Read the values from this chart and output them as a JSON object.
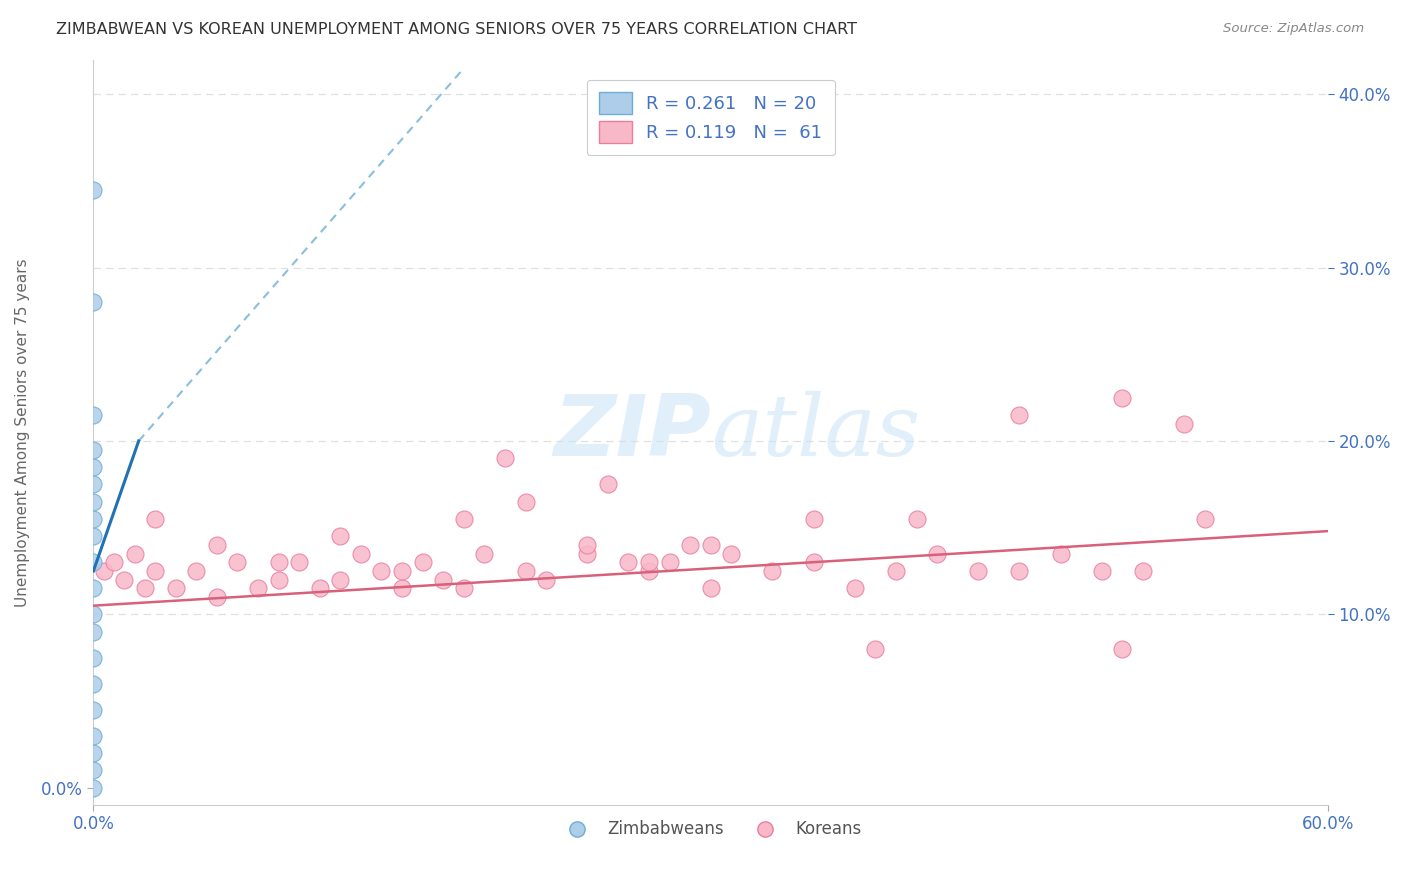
{
  "title": "ZIMBABWEAN VS KOREAN UNEMPLOYMENT AMONG SENIORS OVER 75 YEARS CORRELATION CHART",
  "source": "Source: ZipAtlas.com",
  "ylabel": "Unemployment Among Seniors over 75 years",
  "xlim": [
    0.0,
    0.6
  ],
  "ylim": [
    -0.01,
    0.42
  ],
  "xtick_positions": [
    0.0,
    0.6
  ],
  "xticklabels": [
    "0.0%",
    "60.0%"
  ],
  "left_ytick_positions": [
    0.0
  ],
  "left_yticklabels": [
    "0.0%"
  ],
  "right_ytick_positions": [
    0.1,
    0.2,
    0.3,
    0.4
  ],
  "right_yticklabels": [
    "10.0%",
    "20.0%",
    "30.0%",
    "40.0%"
  ],
  "grid_yticks": [
    0.1,
    0.2,
    0.3,
    0.4
  ],
  "blue_light": "#aecde8",
  "blue_edge": "#6baed6",
  "blue_line": "#2171b5",
  "blue_dash": "#74b3d8",
  "pink_light": "#f9b8c8",
  "pink_edge": "#e87fa0",
  "pink_line": "#d9607a",
  "text_color": "#444444",
  "axis_label_color": "#4472c4",
  "grid_color": "#e0e0e0",
  "watermark_color": "#cce5f5",
  "background": "#ffffff",
  "legend_r_zim": "R = 0.261",
  "legend_n_zim": "N = 20",
  "legend_r_kor": "R = 0.119",
  "legend_n_kor": "N =  61",
  "zim_x": [
    0.0,
    0.0,
    0.0,
    0.0,
    0.0,
    0.0,
    0.0,
    0.0,
    0.0,
    0.0,
    0.0,
    0.0,
    0.0,
    0.0,
    0.0,
    0.0,
    0.0,
    0.0,
    0.0,
    0.0
  ],
  "zim_y": [
    0.0,
    0.01,
    0.02,
    0.03,
    0.045,
    0.06,
    0.075,
    0.09,
    0.1,
    0.115,
    0.13,
    0.145,
    0.155,
    0.165,
    0.175,
    0.185,
    0.195,
    0.215,
    0.28,
    0.345
  ],
  "kor_x": [
    0.005,
    0.01,
    0.015,
    0.02,
    0.025,
    0.03,
    0.04,
    0.05,
    0.06,
    0.07,
    0.08,
    0.09,
    0.1,
    0.11,
    0.12,
    0.13,
    0.14,
    0.15,
    0.16,
    0.17,
    0.18,
    0.19,
    0.2,
    0.21,
    0.22,
    0.24,
    0.25,
    0.26,
    0.27,
    0.28,
    0.29,
    0.3,
    0.31,
    0.33,
    0.35,
    0.37,
    0.39,
    0.41,
    0.43,
    0.45,
    0.47,
    0.49,
    0.51,
    0.53,
    0.03,
    0.06,
    0.09,
    0.12,
    0.15,
    0.18,
    0.21,
    0.24,
    0.27,
    0.3,
    0.35,
    0.4,
    0.45,
    0.5,
    0.54,
    0.38,
    0.5
  ],
  "kor_y": [
    0.125,
    0.13,
    0.12,
    0.135,
    0.115,
    0.125,
    0.115,
    0.125,
    0.11,
    0.13,
    0.115,
    0.12,
    0.13,
    0.115,
    0.12,
    0.135,
    0.125,
    0.115,
    0.13,
    0.12,
    0.115,
    0.135,
    0.19,
    0.125,
    0.12,
    0.135,
    0.175,
    0.13,
    0.125,
    0.13,
    0.14,
    0.115,
    0.135,
    0.125,
    0.13,
    0.115,
    0.125,
    0.135,
    0.125,
    0.125,
    0.135,
    0.125,
    0.125,
    0.21,
    0.155,
    0.14,
    0.13,
    0.145,
    0.125,
    0.155,
    0.165,
    0.14,
    0.13,
    0.14,
    0.155,
    0.155,
    0.215,
    0.225,
    0.155,
    0.08,
    0.08
  ]
}
